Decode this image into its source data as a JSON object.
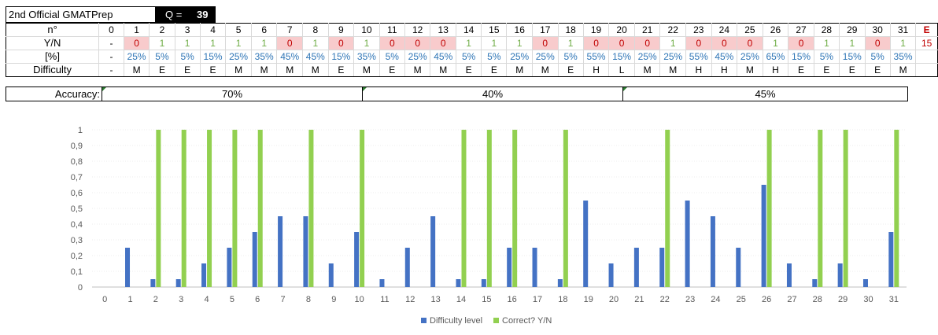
{
  "header": {
    "title": "2nd Official GMATPrep",
    "q_label": "Q =",
    "q_value": "39"
  },
  "table": {
    "row_labels": {
      "n": "n°",
      "yn": "Y/N",
      "pct": "[%]",
      "difficulty": "Difficulty"
    },
    "zero_col": {
      "n": "0",
      "yn": "-",
      "pct": "-",
      "difficulty": "-"
    },
    "numbers": [
      "1",
      "2",
      "3",
      "4",
      "5",
      "6",
      "7",
      "8",
      "9",
      "10",
      "11",
      "12",
      "13",
      "14",
      "15",
      "16",
      "17",
      "18",
      "19",
      "20",
      "21",
      "22",
      "23",
      "24",
      "25",
      "26",
      "27",
      "28",
      "29",
      "30",
      "31"
    ],
    "yn": [
      "0",
      "1",
      "1",
      "1",
      "1",
      "1",
      "0",
      "1",
      "0",
      "1",
      "0",
      "0",
      "0",
      "1",
      "1",
      "1",
      "0",
      "1",
      "0",
      "0",
      "0",
      "1",
      "0",
      "0",
      "0",
      "1",
      "0",
      "1",
      "1",
      "0",
      "1"
    ],
    "pct": [
      "25%",
      "5%",
      "5%",
      "15%",
      "25%",
      "35%",
      "45%",
      "45%",
      "15%",
      "35%",
      "5%",
      "25%",
      "45%",
      "5%",
      "5%",
      "25%",
      "25%",
      "5%",
      "55%",
      "15%",
      "25%",
      "25%",
      "55%",
      "45%",
      "25%",
      "65%",
      "15%",
      "5%",
      "15%",
      "5%",
      "35%"
    ],
    "difficulty": [
      "M",
      "E",
      "E",
      "E",
      "M",
      "M",
      "M",
      "M",
      "E",
      "M",
      "E",
      "M",
      "M",
      "E",
      "E",
      "M",
      "M",
      "E",
      "H",
      "L",
      "M",
      "M",
      "H",
      "H",
      "M",
      "H",
      "E",
      "E",
      "E",
      "E",
      "M"
    ],
    "errors_label": "E",
    "errors_value": "15"
  },
  "accuracy": {
    "label": "Accuracy:",
    "segments": [
      "70%",
      "40%",
      "45%"
    ]
  },
  "chart_data": {
    "type": "bar",
    "categories": [
      "0",
      "1",
      "2",
      "3",
      "4",
      "5",
      "6",
      "7",
      "8",
      "9",
      "10",
      "11",
      "12",
      "13",
      "14",
      "15",
      "16",
      "17",
      "18",
      "19",
      "20",
      "21",
      "22",
      "23",
      "24",
      "25",
      "26",
      "27",
      "28",
      "29",
      "30",
      "31"
    ],
    "series": [
      {
        "name": "Difficulty level",
        "color": "#4472c4",
        "values": [
          0,
          0.25,
          0.05,
          0.05,
          0.15,
          0.25,
          0.35,
          0.45,
          0.45,
          0.15,
          0.35,
          0.05,
          0.25,
          0.45,
          0.05,
          0.05,
          0.25,
          0.25,
          0.05,
          0.55,
          0.15,
          0.25,
          0.25,
          0.55,
          0.45,
          0.25,
          0.65,
          0.15,
          0.05,
          0.15,
          0.05,
          0.35
        ]
      },
      {
        "name": "Correct? Y/N",
        "color": "#92d050",
        "values": [
          0,
          0,
          1,
          1,
          1,
          1,
          1,
          0,
          1,
          0,
          1,
          0,
          0,
          0,
          1,
          1,
          1,
          0,
          1,
          0,
          0,
          0,
          1,
          0,
          0,
          0,
          1,
          0,
          1,
          1,
          0,
          1
        ]
      }
    ],
    "yticks": [
      "0",
      "0,1",
      "0,2",
      "0,3",
      "0,4",
      "0,5",
      "0,6",
      "0,7",
      "0,8",
      "0,9",
      "1"
    ],
    "ylim": [
      0,
      1
    ],
    "legend_position": "bottom",
    "grid": true
  }
}
